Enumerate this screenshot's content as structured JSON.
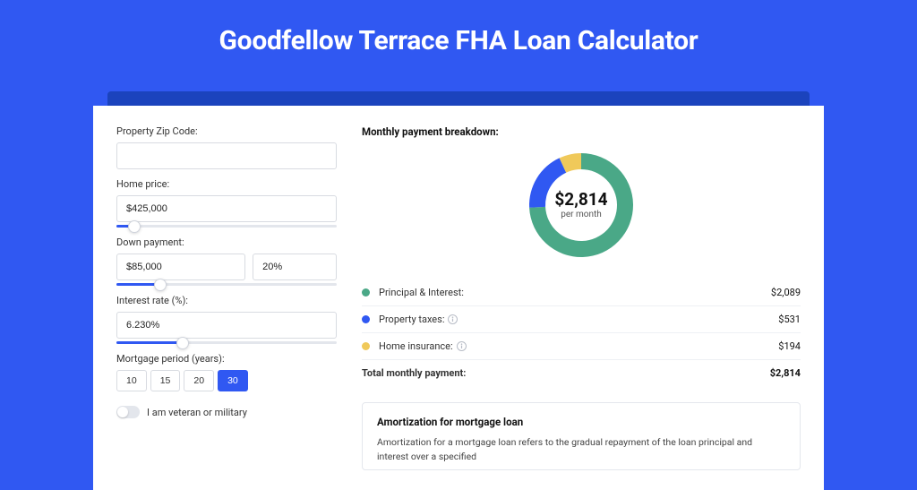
{
  "page_title": "Goodfellow Terrace FHA Loan Calculator",
  "colors": {
    "page_bg": "#3058f2",
    "shadow": "#1b43bd",
    "card_bg": "#ffffff",
    "accent": "#3058f2",
    "border": "#d8dbe1",
    "slider_track": "#e3e6ec",
    "text": "#333333",
    "principal": "#4aa887",
    "taxes": "#3058f2",
    "insurance": "#f0c95a"
  },
  "form": {
    "zip_label": "Property Zip Code:",
    "zip_value": "",
    "price_label": "Home price:",
    "price_value": "$425,000",
    "price_slider_pct": 8,
    "down_label": "Down payment:",
    "down_value": "$85,000",
    "down_pct_value": "20%",
    "down_slider_pct": 20,
    "rate_label": "Interest rate (%):",
    "rate_value": "6.230%",
    "rate_slider_pct": 30,
    "period_label": "Mortgage period (years):",
    "period_options": [
      "10",
      "15",
      "20",
      "30"
    ],
    "period_selected": "30",
    "veteran_label": "I am veteran or military",
    "veteran_on": false
  },
  "breakdown": {
    "heading": "Monthly payment breakdown:",
    "donut": {
      "type": "donut",
      "center_value": "$2,814",
      "center_label": "per month",
      "radius_outer": 58,
      "radius_inner": 40,
      "slices": [
        {
          "label": "Principal & Interest",
          "value": 2089,
          "color": "#4aa887"
        },
        {
          "label": "Property taxes",
          "value": 531,
          "color": "#3058f2"
        },
        {
          "label": "Home insurance",
          "value": 194,
          "color": "#f0c95a"
        }
      ]
    },
    "rows": [
      {
        "dot": "#4aa887",
        "label": "Principal & Interest:",
        "info": false,
        "value": "$2,089"
      },
      {
        "dot": "#3058f2",
        "label": "Property taxes:",
        "info": true,
        "value": "$531"
      },
      {
        "dot": "#f0c95a",
        "label": "Home insurance:",
        "info": true,
        "value": "$194"
      }
    ],
    "total_label": "Total monthly payment:",
    "total_value": "$2,814"
  },
  "amortization": {
    "title": "Amortization for mortgage loan",
    "body": "Amortization for a mortgage loan refers to the gradual repayment of the loan principal and interest over a specified"
  }
}
